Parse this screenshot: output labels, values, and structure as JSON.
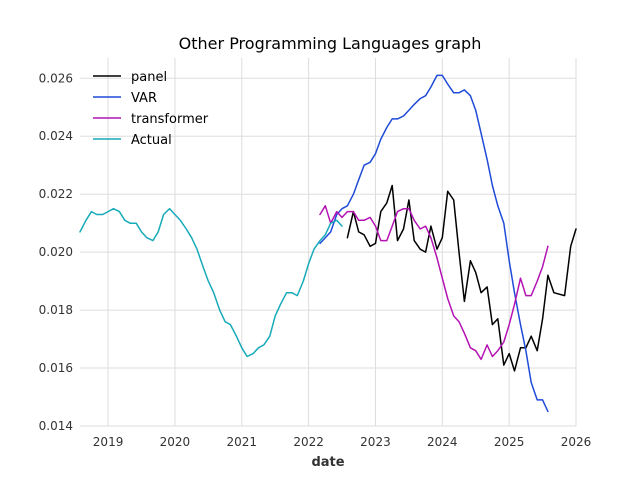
{
  "chart_data": {
    "type": "line",
    "title": "Other Programming Languages graph",
    "xlabel": "date",
    "ylabel": "",
    "xlim": [
      2018.58,
      2026.0
    ],
    "ylim": [
      0.014,
      0.0267
    ],
    "xticks": [
      2019,
      2020,
      2021,
      2022,
      2023,
      2024,
      2025,
      2026
    ],
    "xtick_labels": [
      "2019",
      "2020",
      "2021",
      "2022",
      "2023",
      "2024",
      "2025",
      "2026"
    ],
    "yticks": [
      0.014,
      0.016,
      0.018,
      0.02,
      0.022,
      0.024,
      0.026
    ],
    "ytick_labels": [
      "0.014",
      "0.016",
      "0.018",
      "0.020",
      "0.022",
      "0.024",
      "0.026"
    ],
    "grid": true,
    "legend_position": "top-left",
    "series": [
      {
        "name": "panel",
        "color": "#000000",
        "x": [
          2022.58,
          2022.67,
          2022.75,
          2022.83,
          2022.92,
          2023.0,
          2023.08,
          2023.17,
          2023.25,
          2023.33,
          2023.42,
          2023.5,
          2023.58,
          2023.67,
          2023.75,
          2023.83,
          2023.92,
          2024.0,
          2024.08,
          2024.17,
          2024.25,
          2024.33,
          2024.42,
          2024.5,
          2024.58,
          2024.67,
          2024.75,
          2024.83,
          2024.92,
          2025.0,
          2025.08,
          2025.17,
          2025.25,
          2025.33,
          2025.42,
          2025.5,
          2025.58,
          2025.67,
          2025.83,
          2025.92,
          2026.0
        ],
        "y": [
          0.0205,
          0.0214,
          0.0207,
          0.0206,
          0.0202,
          0.0203,
          0.0214,
          0.0217,
          0.0223,
          0.0204,
          0.0208,
          0.0218,
          0.0204,
          0.0201,
          0.02,
          0.0209,
          0.0201,
          0.0205,
          0.0221,
          0.0218,
          0.02,
          0.0183,
          0.0197,
          0.0193,
          0.0186,
          0.0188,
          0.0175,
          0.0177,
          0.0161,
          0.0165,
          0.0159,
          0.0167,
          0.0167,
          0.0171,
          0.0166,
          0.0177,
          0.0192,
          0.0186,
          0.0185,
          0.0202,
          0.0208
        ]
      },
      {
        "name": "VAR",
        "color": "#1f4bd8",
        "x": [
          2022.17,
          2022.25,
          2022.33,
          2022.42,
          2022.5,
          2022.58,
          2022.67,
          2022.75,
          2022.83,
          2022.92,
          2023.0,
          2023.08,
          2023.17,
          2023.25,
          2023.33,
          2023.42,
          2023.5,
          2023.58,
          2023.67,
          2023.75,
          2023.83,
          2023.92,
          2024.0,
          2024.08,
          2024.17,
          2024.25,
          2024.33,
          2024.42,
          2024.5,
          2024.58,
          2024.67,
          2024.75,
          2024.83,
          2024.92,
          2025.0,
          2025.08,
          2025.17,
          2025.25,
          2025.33,
          2025.42,
          2025.5,
          2025.58
        ],
        "y": [
          0.0203,
          0.0205,
          0.0207,
          0.0213,
          0.0215,
          0.0216,
          0.022,
          0.0225,
          0.023,
          0.0231,
          0.0234,
          0.0239,
          0.0243,
          0.0246,
          0.0246,
          0.0247,
          0.0249,
          0.0251,
          0.0253,
          0.0254,
          0.0257,
          0.0261,
          0.0261,
          0.0258,
          0.0255,
          0.0255,
          0.0256,
          0.0254,
          0.0249,
          0.0241,
          0.0232,
          0.0223,
          0.0216,
          0.021,
          0.0197,
          0.0186,
          0.0175,
          0.0166,
          0.0155,
          0.0149,
          0.0149,
          0.0145
        ]
      },
      {
        "name": "transformer",
        "color": "#b313b3",
        "x": [
          2022.17,
          2022.25,
          2022.33,
          2022.42,
          2022.5,
          2022.58,
          2022.67,
          2022.75,
          2022.83,
          2022.92,
          2023.0,
          2023.08,
          2023.17,
          2023.25,
          2023.33,
          2023.42,
          2023.5,
          2023.58,
          2023.67,
          2023.75,
          2023.83,
          2023.92,
          2024.0,
          2024.08,
          2024.17,
          2024.25,
          2024.33,
          2024.42,
          2024.5,
          2024.58,
          2024.67,
          2024.75,
          2024.83,
          2024.92,
          2025.0,
          2025.08,
          2025.17,
          2025.25,
          2025.33,
          2025.42,
          2025.5,
          2025.58
        ],
        "y": [
          0.0213,
          0.0216,
          0.021,
          0.0214,
          0.0212,
          0.0214,
          0.0214,
          0.0211,
          0.0211,
          0.0212,
          0.0209,
          0.0204,
          0.0204,
          0.0209,
          0.0214,
          0.0215,
          0.0215,
          0.0211,
          0.0208,
          0.0209,
          0.0205,
          0.0198,
          0.0191,
          0.0184,
          0.0178,
          0.0176,
          0.0172,
          0.0167,
          0.0166,
          0.0163,
          0.0168,
          0.0164,
          0.0166,
          0.0169,
          0.0175,
          0.0182,
          0.0191,
          0.0185,
          0.0185,
          0.019,
          0.0195,
          0.0202
        ]
      },
      {
        "name": "Actual",
        "color": "#17aab8",
        "x": [
          2018.58,
          2018.67,
          2018.75,
          2018.83,
          2018.92,
          2019.0,
          2019.08,
          2019.17,
          2019.25,
          2019.33,
          2019.42,
          2019.5,
          2019.58,
          2019.67,
          2019.75,
          2019.83,
          2019.92,
          2020.0,
          2020.08,
          2020.17,
          2020.25,
          2020.33,
          2020.42,
          2020.5,
          2020.58,
          2020.67,
          2020.75,
          2020.83,
          2020.92,
          2021.0,
          2021.08,
          2021.17,
          2021.25,
          2021.33,
          2021.42,
          2021.5,
          2021.58,
          2021.67,
          2021.75,
          2021.83,
          2021.92,
          2022.0,
          2022.08,
          2022.17,
          2022.25,
          2022.33,
          2022.42,
          2022.5
        ],
        "y": [
          0.0207,
          0.0211,
          0.0214,
          0.0213,
          0.0213,
          0.0214,
          0.0215,
          0.0214,
          0.0211,
          0.021,
          0.021,
          0.0207,
          0.0205,
          0.0204,
          0.0207,
          0.0213,
          0.0215,
          0.0213,
          0.0211,
          0.0208,
          0.0205,
          0.0201,
          0.0195,
          0.019,
          0.0186,
          0.018,
          0.0176,
          0.0175,
          0.0171,
          0.0167,
          0.0164,
          0.0165,
          0.0167,
          0.0168,
          0.0171,
          0.0178,
          0.0182,
          0.0186,
          0.0186,
          0.0185,
          0.019,
          0.0196,
          0.0201,
          0.0204,
          0.0206,
          0.021,
          0.0211,
          0.0209
        ]
      }
    ]
  }
}
